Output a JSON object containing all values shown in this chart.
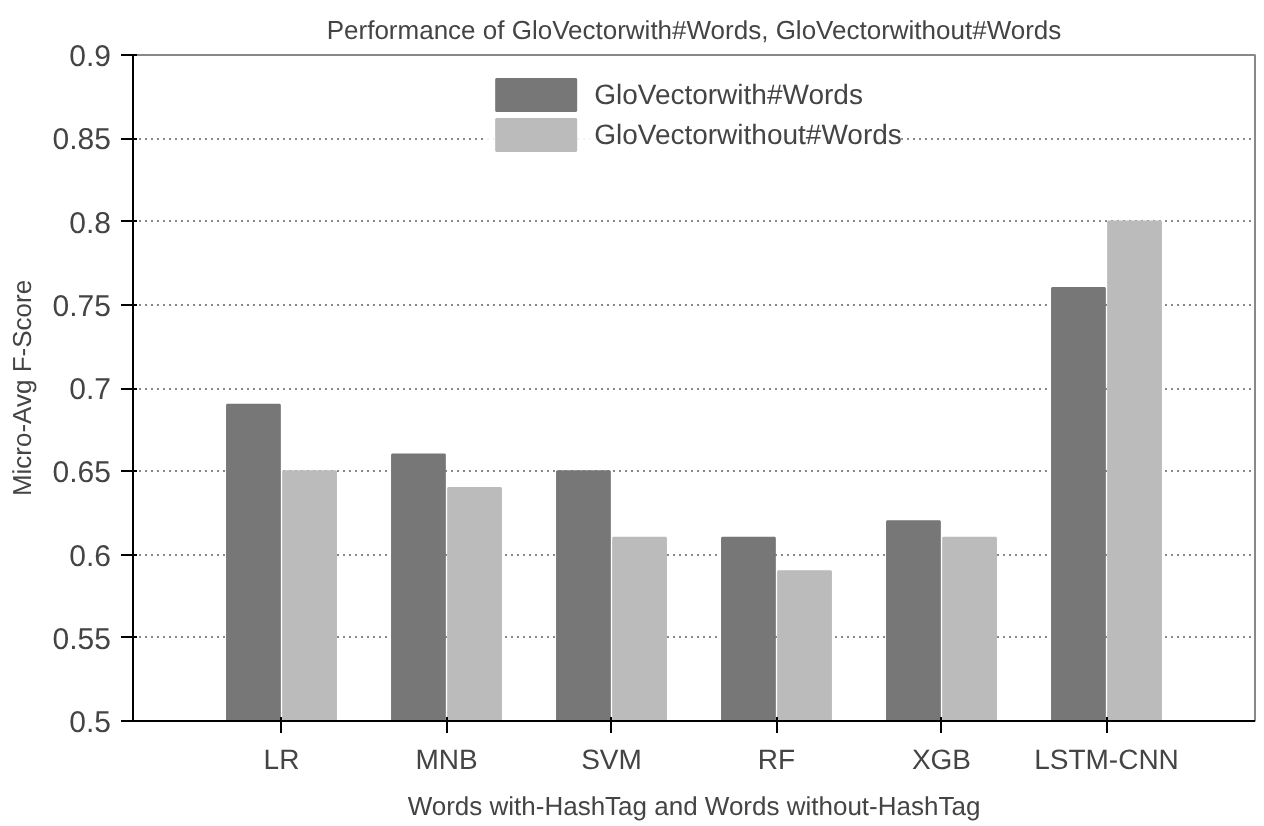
{
  "chart_data": {
    "type": "bar",
    "title": "Performance of GloVectorwith#Words, GloVectorwithout#Words",
    "xlabel": "Words with-HashTag and Words without-HashTag",
    "ylabel": "Micro-Avg F-Score",
    "categories": [
      "LR",
      "MNB",
      "SVM",
      "RF",
      "XGB",
      "LSTM-CNN"
    ],
    "series": [
      {
        "name": "GloVectorwith#Words",
        "color": "#777777",
        "values": [
          0.69,
          0.66,
          0.65,
          0.61,
          0.62,
          0.76
        ]
      },
      {
        "name": "GloVectorwithout#Words",
        "color": "#bbbbbb",
        "values": [
          0.65,
          0.64,
          0.61,
          0.59,
          0.61,
          0.8
        ]
      }
    ],
    "ylim": [
      0.5,
      0.9
    ],
    "yticks": [
      0.5,
      0.55,
      0.6,
      0.65,
      0.7,
      0.75,
      0.8,
      0.85,
      0.9
    ],
    "grid": "y",
    "legend": "top"
  }
}
